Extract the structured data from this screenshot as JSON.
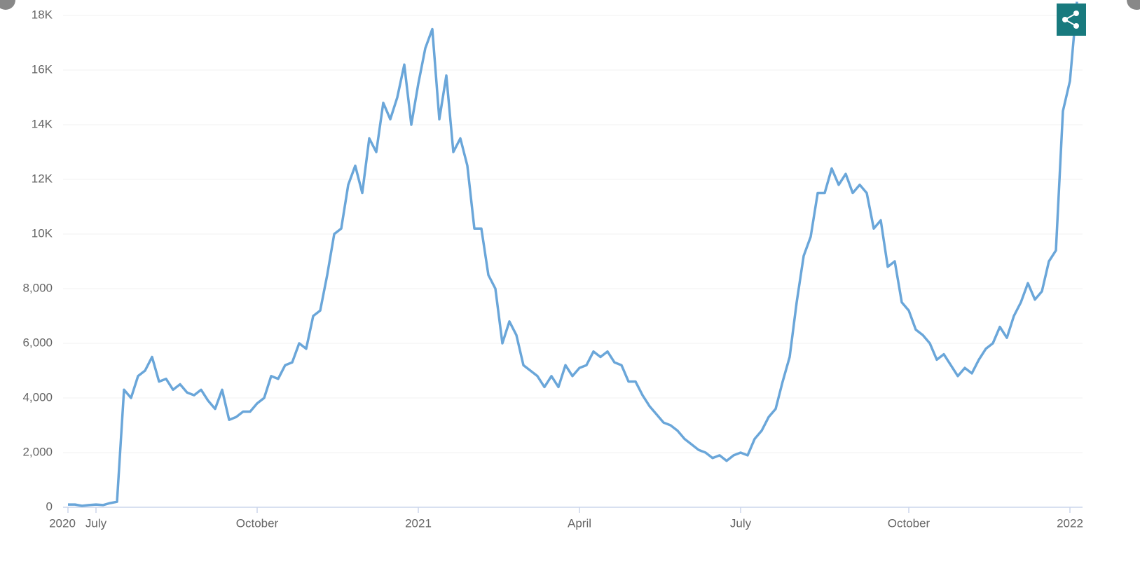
{
  "chart_data": {
    "type": "line",
    "categories": [
      "2020",
      null,
      null,
      null,
      "July",
      null,
      null,
      null,
      null,
      null,
      null,
      null,
      null,
      null,
      null,
      null,
      null,
      null,
      null,
      null,
      null,
      null,
      null,
      null,
      null,
      null,
      null,
      "October",
      null,
      null,
      null,
      null,
      null,
      null,
      null,
      null,
      null,
      null,
      null,
      null,
      null,
      null,
      null,
      null,
      null,
      null,
      null,
      null,
      null,
      null,
      "2021",
      null,
      null,
      null,
      null,
      null,
      null,
      null,
      null,
      null,
      null,
      null,
      null,
      null,
      null,
      null,
      null,
      null,
      null,
      null,
      null,
      null,
      null,
      "April",
      null,
      null,
      null,
      null,
      null,
      null,
      null,
      null,
      null,
      null,
      null,
      null,
      null,
      null,
      null,
      null,
      null,
      null,
      null,
      null,
      null,
      null,
      "July",
      null,
      null,
      null,
      null,
      null,
      null,
      null,
      null,
      null,
      null,
      null,
      null,
      null,
      null,
      null,
      null,
      null,
      null,
      null,
      null,
      null,
      null,
      null,
      "October",
      null,
      null,
      null,
      null,
      null,
      null,
      null,
      null,
      null,
      null,
      null,
      null,
      null,
      null,
      null,
      null,
      null,
      null,
      null,
      null,
      null,
      null,
      "2022",
      null
    ],
    "values": [
      100,
      100,
      50,
      80,
      100,
      80,
      150,
      200,
      4300,
      4000,
      4800,
      5000,
      5500,
      4600,
      4700,
      4300,
      4500,
      4200,
      4100,
      4300,
      3900,
      3600,
      4300,
      3200,
      3300,
      3500,
      3500,
      3800,
      4000,
      4800,
      4700,
      5200,
      5300,
      6000,
      5800,
      7000,
      7200,
      8500,
      10000,
      10200,
      11800,
      12500,
      11500,
      13500,
      13000,
      14800,
      14200,
      15000,
      16200,
      14000,
      15500,
      16800,
      17500,
      14200,
      15800,
      13000,
      13500,
      12500,
      10200,
      10200,
      8500,
      8000,
      6000,
      6800,
      6300,
      5200,
      5000,
      4800,
      4400,
      4800,
      4400,
      5200,
      4800,
      5100,
      5200,
      5700,
      5500,
      5700,
      5300,
      5200,
      4600,
      4600,
      4100,
      3700,
      3400,
      3100,
      3000,
      2800,
      2500,
      2300,
      2100,
      2000,
      1800,
      1900,
      1700,
      1900,
      2000,
      1900,
      2500,
      2800,
      3300,
      3600,
      4600,
      5500,
      7500,
      9200,
      9900,
      11500,
      11500,
      12400,
      11800,
      12200,
      11500,
      11800,
      11500,
      10200,
      10500,
      8800,
      9000,
      7500,
      7200,
      6500,
      6300,
      6000,
      5400,
      5600,
      5200,
      4800,
      5100,
      4900,
      5400,
      5800,
      6000,
      6600,
      6200,
      7000,
      7500,
      8200,
      7600,
      7900,
      9000,
      9400,
      14500,
      15600,
      18500
    ],
    "color": "#6aa6d9",
    "ylim": [
      0,
      18500
    ],
    "yticks": [
      0,
      {
        "value": 2000,
        "label": "2,000"
      },
      {
        "value": 4000,
        "label": "4,000"
      },
      {
        "value": 6000,
        "label": "6,000"
      },
      {
        "value": 8000,
        "label": "8,000"
      },
      {
        "value": 10000,
        "label": "10K"
      },
      {
        "value": 12000,
        "label": "12K"
      },
      {
        "value": 14000,
        "label": "14K"
      },
      {
        "value": 16000,
        "label": "16K"
      },
      {
        "value": 18000,
        "label": "18K"
      }
    ],
    "grid": true
  }
}
